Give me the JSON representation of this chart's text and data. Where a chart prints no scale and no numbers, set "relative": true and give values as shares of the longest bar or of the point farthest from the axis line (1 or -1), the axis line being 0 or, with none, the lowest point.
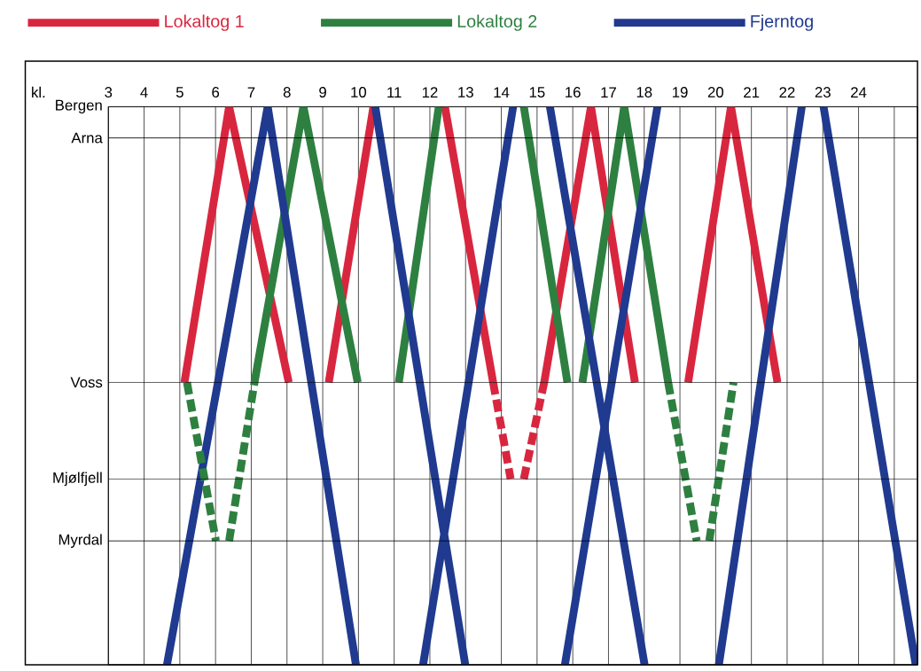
{
  "chart_data": {
    "type": "line",
    "xlabel": "kl.",
    "xlim": [
      3,
      25.65
    ],
    "relative": true,
    "xticks": [
      3,
      4,
      5,
      6,
      7,
      8,
      9,
      10,
      11,
      12,
      13,
      14,
      15,
      16,
      17,
      18,
      19,
      20,
      21,
      22,
      23,
      24,
      {
        "value": 25,
        "label": null
      }
    ],
    "ref_lines": [
      {
        "axis": "y",
        "value": 1,
        "label": "Bergen"
      },
      {
        "axis": "y",
        "value": 0.944,
        "label": "Arna"
      },
      {
        "axis": "y",
        "value": 0.506,
        "label": "Voss"
      },
      {
        "axis": "y",
        "value": 0.333,
        "label": "Mjølfjell"
      },
      {
        "axis": "y",
        "value": 0.222,
        "label": "Myrdal"
      }
    ],
    "grid": "x",
    "legend": "top",
    "series": [
      {
        "name": "Lokaltog 1",
        "color": "#d9263f",
        "line_style": "solid",
        "x": [
          5.13,
          6.38,
          8.05,
          null,
          9.17,
          10.42,
          null,
          12.42,
          13.77,
          null,
          15.2,
          16.51,
          17.74,
          null,
          19.23,
          20.43,
          21.73
        ],
        "values": [
          0.506,
          1,
          0.506,
          null,
          0.506,
          1,
          null,
          1,
          0.506,
          null,
          0.506,
          1,
          0.506,
          null,
          0.506,
          1,
          0.506
        ]
      },
      {
        "name": "Lokaltog 2",
        "color": "#2e8040",
        "line_style": "solid",
        "x": [
          7.09,
          8.46,
          9.98,
          null,
          11.13,
          12.25,
          null,
          14.63,
          15.85,
          null,
          16.27,
          17.44,
          18.67
        ],
        "values": [
          0.506,
          1,
          0.506,
          null,
          0.506,
          1,
          null,
          1,
          0.506,
          null,
          0.506,
          1,
          0.506
        ]
      },
      {
        "name": "Fjerntog",
        "color": "#1f3a8f",
        "line_style": "solid",
        "x": [
          4.64,
          7.46,
          9.93,
          null,
          10.47,
          12.99,
          null,
          11.81,
          14.33,
          null,
          15.36,
          18.01,
          null,
          15.78,
          18.37,
          null,
          20.09,
          22.41,
          null,
          23.02,
          25.6
        ],
        "values": [
          0,
          1,
          0,
          null,
          1,
          0,
          null,
          0,
          1,
          null,
          1,
          0,
          null,
          0,
          1,
          null,
          0,
          1,
          null,
          1,
          0
        ]
      },
      {
        "color": "#d9263f",
        "line_style": "dashed",
        "x": [
          13.77,
          14.26,
          null,
          14.63,
          15.2
        ],
        "values": [
          0.506,
          0.333,
          null,
          0.333,
          0.506
        ]
      },
      {
        "color": "#2e8040",
        "line_style": "dashed",
        "x": [
          5.2,
          6.01,
          null,
          6.38,
          7.09,
          null,
          18.67,
          19.47,
          null,
          19.82,
          20.5
        ],
        "values": [
          0.506,
          0.222,
          null,
          0.222,
          0.506,
          null,
          0.506,
          0.222,
          null,
          0.222,
          0.506
        ]
      }
    ]
  }
}
